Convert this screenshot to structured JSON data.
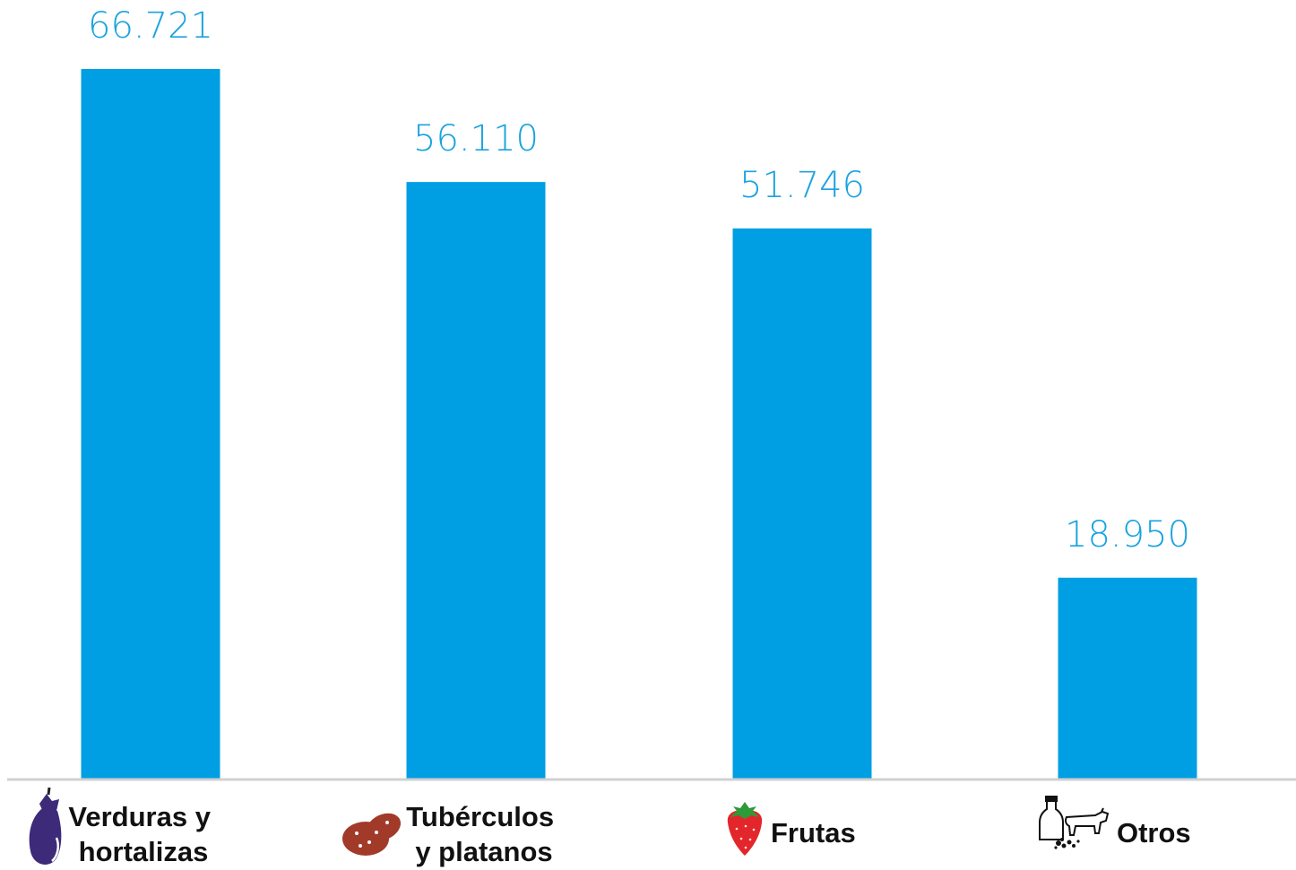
{
  "chart_data": {
    "type": "bar",
    "title": "",
    "xlabel": "",
    "ylabel": "",
    "ylim": [
      0,
      66.721
    ],
    "grid": false,
    "legend": "none",
    "categories": [
      {
        "lines": [
          "Verduras y",
          "hortalizas"
        ],
        "icon": "eggplant-icon"
      },
      {
        "lines": [
          "Tubérculos",
          "y platanos"
        ],
        "icon": "potato-icon"
      },
      {
        "lines": [
          "Frutas"
        ],
        "icon": "strawberry-icon"
      },
      {
        "lines": [
          "Otros"
        ],
        "icon": "milk-cow-icon"
      }
    ],
    "values": [
      66.721,
      56.11,
      51.746,
      18.95
    ],
    "value_labels": [
      "66.721",
      "56.110",
      "51.746",
      "18.950"
    ]
  },
  "colors": {
    "bar": "#009fe3",
    "value_label": "#1aa3e0",
    "axis": "#d0d0d0",
    "eggplant": "#3d2a78",
    "potato": "#a23a2a",
    "strawberry_red": "#e3262b",
    "strawberry_leaf": "#2e9a38"
  }
}
